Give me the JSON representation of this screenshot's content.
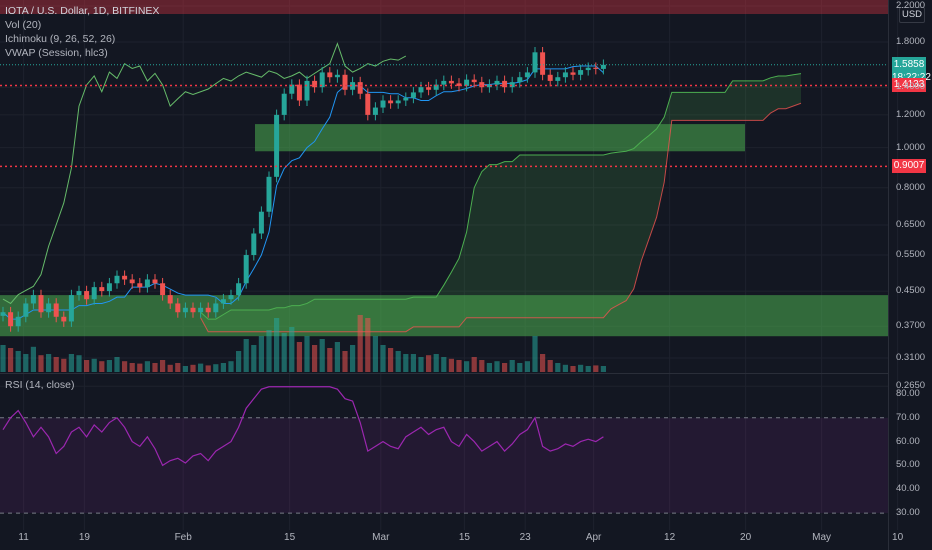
{
  "legend": {
    "title": "IOTA / U.S. Dollar, 1D, BITFINEX",
    "vol": "Vol (20)",
    "ichimoku": "Ichimoku (9, 26, 52, 26)",
    "vwap": "VWAP (Session, hlc3)"
  },
  "rsi_label": "RSI (14, close)",
  "currency": "USD",
  "last_price": {
    "value": "1.5858",
    "countdown": "18:22:22"
  },
  "levels": [
    {
      "label": "1.4133",
      "value": 1.4133
    },
    {
      "label": "0.9007",
      "value": 0.9007
    }
  ],
  "colors": {
    "bg": "#131722",
    "up": "#26a69a",
    "down": "#ef5350",
    "level": "#f23645",
    "rsi": "#9c27b0",
    "zone": "#4caf50"
  },
  "chart_data": {
    "type": "candlestick",
    "y_scale": "log",
    "ylim": [
      0.29,
      2.2
    ],
    "y_ticks": [
      "2.2000",
      "1.8000",
      "1.4000",
      "1.2000",
      "1.0000",
      "0.8000",
      "0.6500",
      "0.5500",
      "0.4500",
      "0.3700",
      "0.3100",
      "0.2650"
    ],
    "x_ticks": [
      "11",
      "19",
      "Feb",
      "15",
      "Mar",
      "15",
      "23",
      "Apr",
      "12",
      "20",
      "May",
      "10"
    ],
    "zones": [
      [
        0.35,
        0.44
      ],
      [
        0.98,
        1.14
      ]
    ],
    "close": [
      0.4,
      0.37,
      0.39,
      0.42,
      0.44,
      0.4,
      0.42,
      0.39,
      0.38,
      0.44,
      0.45,
      0.43,
      0.46,
      0.45,
      0.47,
      0.49,
      0.48,
      0.47,
      0.46,
      0.48,
      0.47,
      0.44,
      0.42,
      0.4,
      0.41,
      0.4,
      0.41,
      0.4,
      0.42,
      0.43,
      0.44,
      0.47,
      0.55,
      0.62,
      0.7,
      0.85,
      1.2,
      1.35,
      1.42,
      1.3,
      1.45,
      1.4,
      1.52,
      1.48,
      1.5,
      1.38,
      1.44,
      1.35,
      1.2,
      1.25,
      1.3,
      1.28,
      1.3,
      1.32,
      1.36,
      1.4,
      1.38,
      1.42,
      1.45,
      1.43,
      1.41,
      1.46,
      1.44,
      1.4,
      1.42,
      1.45,
      1.4,
      1.44,
      1.48,
      1.52,
      1.7,
      1.5,
      1.45,
      1.48,
      1.52,
      1.5,
      1.54,
      1.56,
      1.55,
      1.5858
    ],
    "volume": [
      0.45,
      0.4,
      0.35,
      0.3,
      0.42,
      0.28,
      0.3,
      0.25,
      0.22,
      0.3,
      0.28,
      0.2,
      0.22,
      0.18,
      0.2,
      0.25,
      0.18,
      0.15,
      0.14,
      0.18,
      0.15,
      0.2,
      0.12,
      0.15,
      0.1,
      0.12,
      0.14,
      0.11,
      0.13,
      0.15,
      0.18,
      0.35,
      0.55,
      0.45,
      0.6,
      0.7,
      0.9,
      0.65,
      0.75,
      0.5,
      0.6,
      0.45,
      0.55,
      0.4,
      0.5,
      0.35,
      0.45,
      0.95,
      0.9,
      0.6,
      0.45,
      0.4,
      0.35,
      0.3,
      0.3,
      0.25,
      0.28,
      0.3,
      0.25,
      0.22,
      0.2,
      0.18,
      0.25,
      0.2,
      0.15,
      0.18,
      0.15,
      0.2,
      0.15,
      0.18,
      0.6,
      0.3,
      0.2,
      0.15,
      0.12,
      0.1,
      0.12,
      0.1,
      0.11,
      0.1
    ],
    "rsi": {
      "ticks": [
        "80.00",
        "70.00",
        "60.00",
        "50.00",
        "40.00",
        "30.00"
      ],
      "bands": [
        30,
        70
      ],
      "values": [
        65,
        70,
        73,
        68,
        62,
        66,
        62,
        55,
        58,
        64,
        66,
        62,
        67,
        64,
        68,
        70,
        66,
        60,
        58,
        62,
        57,
        50,
        52,
        53,
        51,
        54,
        55,
        52,
        56,
        58,
        60,
        66,
        74,
        78,
        82,
        85,
        88,
        86,
        87,
        85,
        88,
        84,
        86,
        83,
        82,
        78,
        77,
        68,
        56,
        58,
        60,
        58,
        57,
        62,
        64,
        66,
        63,
        65,
        66,
        60,
        58,
        63,
        60,
        56,
        58,
        60,
        56,
        59,
        63,
        65,
        70,
        58,
        56,
        57,
        59,
        58,
        60,
        61,
        60,
        62
      ]
    }
  }
}
